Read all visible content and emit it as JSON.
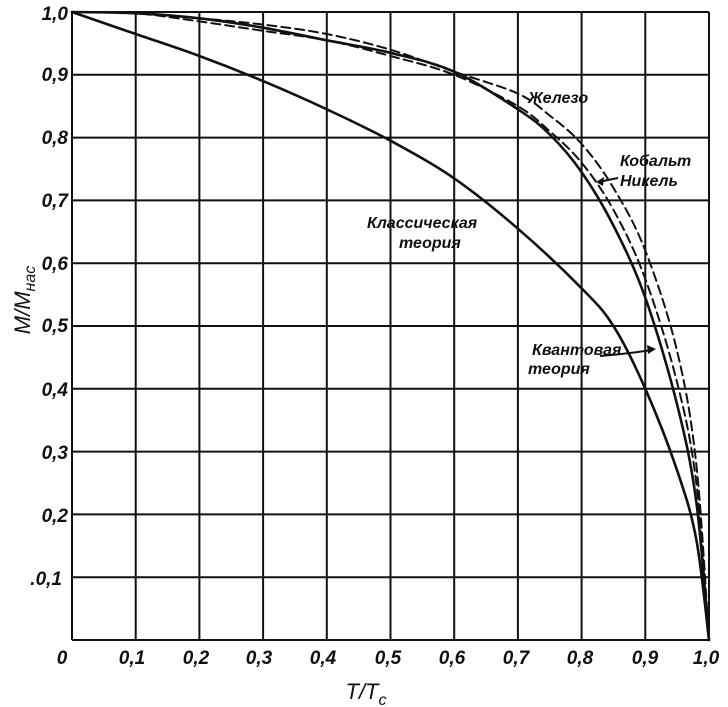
{
  "chart_data": {
    "type": "line",
    "xlabel_main": "T/T",
    "xlabel_sub": "c",
    "ylabel_main": "M/M",
    "ylabel_sub": "нас",
    "xlim": [
      0,
      1.0
    ],
    "ylim": [
      0,
      1.0
    ],
    "grid": true,
    "x_ticks": [
      "0",
      "0,1",
      "0,2",
      "0,3",
      "0,4",
      "0,5",
      "0,6",
      "0,7",
      "0,8",
      "0,9",
      "1,0"
    ],
    "y_ticks": [
      ".0,1",
      "0,2",
      "0,3",
      "0,4",
      "0,5",
      "0,6",
      "0,7",
      "0,8",
      "0,9",
      "1,0"
    ],
    "annotations": {
      "iron": "Железо",
      "cobalt": "Кобальт",
      "nickel": "Никель",
      "classical_1": "Классическая",
      "classical_2": "теория",
      "quantum_1": "Квантовая",
      "quantum_2": "теория"
    },
    "series": [
      {
        "id": "classical",
        "style": "solid",
        "x": [
          0,
          0.1,
          0.2,
          0.3,
          0.4,
          0.5,
          0.6,
          0.7,
          0.8,
          0.85,
          0.9,
          0.95,
          0.98,
          1.0
        ],
        "y": [
          1.0,
          0.965,
          0.93,
          0.89,
          0.845,
          0.795,
          0.735,
          0.655,
          0.56,
          0.5,
          0.4,
          0.27,
          0.16,
          0.0
        ]
      },
      {
        "id": "quantum",
        "style": "solid",
        "x": [
          0,
          0.1,
          0.2,
          0.3,
          0.4,
          0.5,
          0.6,
          0.7,
          0.75,
          0.8,
          0.85,
          0.9,
          0.95,
          0.98,
          1.0
        ],
        "y": [
          1.0,
          0.998,
          0.99,
          0.975,
          0.955,
          0.935,
          0.905,
          0.845,
          0.805,
          0.745,
          0.66,
          0.545,
          0.375,
          0.22,
          0.0
        ]
      },
      {
        "id": "iron",
        "style": "dashed",
        "x": [
          0,
          0.1,
          0.2,
          0.3,
          0.4,
          0.5,
          0.6,
          0.7,
          0.75,
          0.8,
          0.85,
          0.9,
          0.95,
          0.98,
          1.0
        ],
        "y": [
          1.0,
          0.998,
          0.99,
          0.98,
          0.965,
          0.94,
          0.905,
          0.87,
          0.835,
          0.79,
          0.72,
          0.62,
          0.46,
          0.28,
          0.0
        ]
      },
      {
        "id": "cobalt-nickel",
        "style": "dashed",
        "x": [
          0,
          0.1,
          0.2,
          0.3,
          0.4,
          0.5,
          0.6,
          0.7,
          0.75,
          0.8,
          0.85,
          0.9,
          0.95,
          0.98,
          1.0
        ],
        "y": [
          1.0,
          0.998,
          0.985,
          0.97,
          0.955,
          0.93,
          0.9,
          0.85,
          0.81,
          0.76,
          0.685,
          0.575,
          0.41,
          0.25,
          0.0
        ]
      }
    ]
  }
}
